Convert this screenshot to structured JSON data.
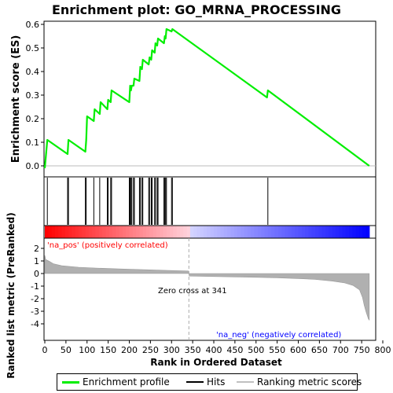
{
  "chart_data": {
    "type": "line",
    "title": "Enrichment plot: GO_MRNA_PROCESSING",
    "x_axis": {
      "label": "Rank in Ordered Dataset",
      "range": [
        0,
        800
      ],
      "ticks": [
        "0",
        "50",
        "100",
        "150",
        "200",
        "250",
        "300",
        "350",
        "400",
        "450",
        "500",
        "550",
        "600",
        "650",
        "700",
        "750",
        "800"
      ]
    },
    "es_panel": {
      "ylabel": "Enrichment score (ES)",
      "ylim": [
        -0.02,
        0.62
      ],
      "yticks": [
        "0.0",
        "0.1",
        "0.2",
        "0.3",
        "0.4",
        "0.5",
        "0.6"
      ],
      "series": [
        {
          "name": "Enrichment profile",
          "color": "#00ee00",
          "x": [
            0,
            6,
            54,
            56,
            96,
            98,
            100,
            116,
            118,
            130,
            132,
            148,
            150,
            156,
            158,
            200,
            202,
            204,
            206,
            210,
            212,
            224,
            226,
            230,
            232,
            246,
            248,
            252,
            254,
            260,
            262,
            266,
            268,
            282,
            284,
            286,
            288,
            300,
            302,
            526,
            528,
            768
          ],
          "y": [
            -0.01,
            0.11,
            0.05,
            0.11,
            0.06,
            0.11,
            0.21,
            0.19,
            0.24,
            0.22,
            0.27,
            0.24,
            0.28,
            0.27,
            0.32,
            0.27,
            0.34,
            0.32,
            0.34,
            0.34,
            0.37,
            0.36,
            0.42,
            0.41,
            0.45,
            0.43,
            0.46,
            0.45,
            0.49,
            0.48,
            0.52,
            0.51,
            0.54,
            0.52,
            0.55,
            0.54,
            0.58,
            0.57,
            0.58,
            0.29,
            0.32,
            0.0
          ]
        }
      ]
    },
    "hits": {
      "name": "Hits",
      "ranks": [
        6,
        54,
        56,
        96,
        98,
        116,
        130,
        148,
        150,
        156,
        158,
        200,
        202,
        204,
        206,
        210,
        212,
        224,
        226,
        230,
        232,
        246,
        248,
        252,
        254,
        260,
        262,
        266,
        268,
        282,
        284,
        286,
        288,
        300,
        302,
        528
      ]
    },
    "heatmap_bar": {
      "pos_color": "#ff0000",
      "neg_color": "#0000ff",
      "zero_cross": 341,
      "total": 768
    },
    "metric_panel": {
      "name": "Ranking metric scores",
      "ylabel": "Ranked list metric (PreRanked)",
      "ylim": [
        -4,
        2.5
      ],
      "yticks": [
        "2",
        "1",
        "0",
        "-1",
        "-2",
        "-3",
        "-4"
      ],
      "color": "#b0b0b0",
      "x": [
        0,
        2,
        10,
        20,
        40,
        80,
        120,
        180,
        240,
        300,
        340,
        341,
        342,
        400,
        450,
        500,
        550,
        600,
        640,
        680,
        710,
        730,
        745,
        752,
        756,
        760,
        764,
        766,
        768
      ],
      "y": [
        1.45,
        1.12,
        0.98,
        0.78,
        0.62,
        0.5,
        0.44,
        0.36,
        0.3,
        0.24,
        0.2,
        0.0,
        -0.2,
        -0.24,
        -0.27,
        -0.3,
        -0.34,
        -0.4,
        -0.47,
        -0.6,
        -0.75,
        -0.95,
        -1.3,
        -1.9,
        -2.5,
        -3.0,
        -3.4,
        -3.6,
        -3.7
      ]
    },
    "annotations": {
      "pos_label": "'na_pos' (positively correlated)",
      "neg_label": "'na_neg' (negatively correlated)",
      "zero_cross_label": "Zero cross at 341"
    }
  },
  "legend": {
    "items": [
      {
        "label": "Enrichment profile",
        "color": "#00ee00"
      },
      {
        "label": "Hits",
        "color": "#000000"
      },
      {
        "label": "Ranking metric scores",
        "color": "#c0c0c0"
      }
    ]
  }
}
